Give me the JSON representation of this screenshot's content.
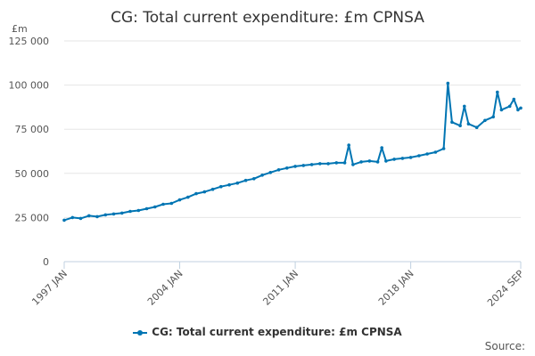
{
  "chart_data": {
    "type": "line",
    "title": "CG: Total current expenditure: £m CPNSA",
    "ylabel": "£m",
    "xlabel": "",
    "ylim": [
      0,
      125000
    ],
    "yticks": [
      0,
      25000,
      50000,
      75000,
      100000,
      125000
    ],
    "ytick_labels": [
      "0",
      "25 000",
      "50 000",
      "75 000",
      "100 000",
      "125 000"
    ],
    "xrange": [
      "1997-01",
      "2024-09"
    ],
    "xticks": [
      "1997-01",
      "2004-01",
      "2011-01",
      "2018-01",
      "2024-09"
    ],
    "xtick_labels": [
      "1997 JAN",
      "2004 JAN",
      "2011 JAN",
      "2018 JAN",
      "2024 SEP"
    ],
    "grid": true,
    "legend_position": "bottom",
    "color": "#0075b3",
    "series": [
      {
        "name": "CG: Total current expenditure: £m CPNSA",
        "values": [
          [
            "1997-01",
            23500
          ],
          [
            "1997-07",
            25000
          ],
          [
            "1998-01",
            24500
          ],
          [
            "1998-07",
            26000
          ],
          [
            "1999-01",
            25500
          ],
          [
            "1999-07",
            26500
          ],
          [
            "2000-01",
            27000
          ],
          [
            "2000-07",
            27500
          ],
          [
            "2001-01",
            28500
          ],
          [
            "2001-07",
            29000
          ],
          [
            "2002-01",
            30000
          ],
          [
            "2002-07",
            31000
          ],
          [
            "2003-01",
            32500
          ],
          [
            "2003-07",
            33000
          ],
          [
            "2004-01",
            35000
          ],
          [
            "2004-07",
            36500
          ],
          [
            "2005-01",
            38500
          ],
          [
            "2005-07",
            39500
          ],
          [
            "2006-01",
            41000
          ],
          [
            "2006-07",
            42500
          ],
          [
            "2007-01",
            43500
          ],
          [
            "2007-07",
            44500
          ],
          [
            "2008-01",
            46000
          ],
          [
            "2008-07",
            47000
          ],
          [
            "2009-01",
            49000
          ],
          [
            "2009-07",
            50500
          ],
          [
            "2010-01",
            52000
          ],
          [
            "2010-07",
            53000
          ],
          [
            "2011-01",
            54000
          ],
          [
            "2011-07",
            54500
          ],
          [
            "2012-01",
            55000
          ],
          [
            "2012-07",
            55500
          ],
          [
            "2013-01",
            55500
          ],
          [
            "2013-07",
            56000
          ],
          [
            "2014-01",
            56000
          ],
          [
            "2014-04",
            66000
          ],
          [
            "2014-07",
            55000
          ],
          [
            "2015-01",
            56500
          ],
          [
            "2015-07",
            57000
          ],
          [
            "2016-01",
            56500
          ],
          [
            "2016-04",
            64500
          ],
          [
            "2016-07",
            57000
          ],
          [
            "2017-01",
            58000
          ],
          [
            "2017-07",
            58500
          ],
          [
            "2018-01",
            59000
          ],
          [
            "2018-07",
            60000
          ],
          [
            "2019-01",
            61000
          ],
          [
            "2019-07",
            62000
          ],
          [
            "2020-01",
            64000
          ],
          [
            "2020-04",
            101000
          ],
          [
            "2020-07",
            79000
          ],
          [
            "2021-01",
            77000
          ],
          [
            "2021-04",
            88000
          ],
          [
            "2021-07",
            78000
          ],
          [
            "2022-01",
            76000
          ],
          [
            "2022-07",
            80000
          ],
          [
            "2023-01",
            82000
          ],
          [
            "2023-04",
            96000
          ],
          [
            "2023-07",
            86000
          ],
          [
            "2024-01",
            88000
          ],
          [
            "2024-04",
            92000
          ],
          [
            "2024-07",
            86000
          ],
          [
            "2024-09",
            87000
          ]
        ]
      }
    ]
  },
  "footer": {
    "credit": "Source:"
  }
}
